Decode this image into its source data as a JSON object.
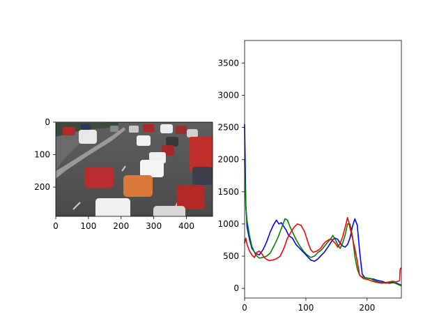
{
  "figure": {
    "image_panel": {
      "description": "photo of highway traffic with many cars",
      "xticks": [
        "0",
        "100",
        "200",
        "300",
        "400"
      ],
      "yticks": [
        "0",
        "100",
        "200"
      ]
    }
  },
  "chart_data": [
    {
      "type": "image",
      "xlim": [
        0,
        480
      ],
      "ylim": [
        290,
        0
      ],
      "xticks": [
        0,
        100,
        200,
        300,
        400
      ],
      "yticks": [
        0,
        100,
        200
      ]
    },
    {
      "type": "line",
      "title": "",
      "xlabel": "",
      "ylabel": "",
      "xlim": [
        0,
        256
      ],
      "ylim": [
        -150,
        3850
      ],
      "xticks": [
        0,
        100,
        200
      ],
      "yticks": [
        0,
        500,
        1000,
        1500,
        2000,
        2500,
        3000,
        3500
      ],
      "grid": false,
      "series": [
        {
          "color": "#0000ff",
          "points": [
            [
              0,
              2550
            ],
            [
              2,
              1300
            ],
            [
              4,
              950
            ],
            [
              8,
              760
            ],
            [
              12,
              620
            ],
            [
              18,
              540
            ],
            [
              24,
              520
            ],
            [
              30,
              600
            ],
            [
              36,
              720
            ],
            [
              42,
              880
            ],
            [
              48,
              1000
            ],
            [
              52,
              1060
            ],
            [
              56,
              1000
            ],
            [
              60,
              1020
            ],
            [
              64,
              960
            ],
            [
              68,
              900
            ],
            [
              72,
              820
            ],
            [
              78,
              780
            ],
            [
              84,
              680
            ],
            [
              90,
              620
            ],
            [
              96,
              560
            ],
            [
              102,
              500
            ],
            [
              108,
              440
            ],
            [
              114,
              420
            ],
            [
              120,
              460
            ],
            [
              126,
              520
            ],
            [
              130,
              560
            ],
            [
              136,
              640
            ],
            [
              140,
              700
            ],
            [
              144,
              760
            ],
            [
              148,
              780
            ],
            [
              152,
              760
            ],
            [
              156,
              700
            ],
            [
              160,
              660
            ],
            [
              164,
              640
            ],
            [
              168,
              680
            ],
            [
              172,
              780
            ],
            [
              176,
              960
            ],
            [
              180,
              1080
            ],
            [
              184,
              980
            ],
            [
              188,
              560
            ],
            [
              192,
              220
            ],
            [
              196,
              170
            ],
            [
              200,
              160
            ],
            [
              206,
              150
            ],
            [
              212,
              140
            ],
            [
              218,
              120
            ],
            [
              224,
              110
            ],
            [
              230,
              90
            ],
            [
              236,
              80
            ],
            [
              242,
              90
            ],
            [
              248,
              80
            ],
            [
              253,
              60
            ],
            [
              256,
              50
            ]
          ]
        },
        {
          "color": "#008000",
          "points": [
            [
              0,
              2000
            ],
            [
              2,
              1250
            ],
            [
              4,
              1050
            ],
            [
              8,
              820
            ],
            [
              12,
              650
            ],
            [
              18,
              520
            ],
            [
              24,
              470
            ],
            [
              30,
              480
            ],
            [
              36,
              500
            ],
            [
              42,
              550
            ],
            [
              48,
              660
            ],
            [
              54,
              780
            ],
            [
              58,
              880
            ],
            [
              62,
              980
            ],
            [
              66,
              1080
            ],
            [
              70,
              1060
            ],
            [
              74,
              960
            ],
            [
              78,
              880
            ],
            [
              84,
              760
            ],
            [
              90,
              660
            ],
            [
              96,
              580
            ],
            [
              102,
              520
            ],
            [
              108,
              480
            ],
            [
              114,
              500
            ],
            [
              120,
              560
            ],
            [
              126,
              600
            ],
            [
              130,
              650
            ],
            [
              136,
              720
            ],
            [
              140,
              760
            ],
            [
              144,
              820
            ],
            [
              148,
              760
            ],
            [
              152,
              680
            ],
            [
              156,
              620
            ],
            [
              160,
              700
            ],
            [
              164,
              820
            ],
            [
              168,
              1000
            ],
            [
              172,
              1000
            ],
            [
              176,
              820
            ],
            [
              180,
              500
            ],
            [
              184,
              300
            ],
            [
              188,
              200
            ],
            [
              194,
              170
            ],
            [
              200,
              160
            ],
            [
              206,
              150
            ],
            [
              212,
              120
            ],
            [
              218,
              100
            ],
            [
              224,
              90
            ],
            [
              230,
              80
            ],
            [
              236,
              90
            ],
            [
              242,
              100
            ],
            [
              248,
              70
            ],
            [
              253,
              50
            ],
            [
              256,
              40
            ]
          ]
        },
        {
          "color": "#ff0000",
          "points": [
            [
              0,
              700
            ],
            [
              2,
              780
            ],
            [
              4,
              680
            ],
            [
              8,
              580
            ],
            [
              12,
              520
            ],
            [
              16,
              480
            ],
            [
              20,
              560
            ],
            [
              24,
              580
            ],
            [
              28,
              540
            ],
            [
              32,
              480
            ],
            [
              36,
              450
            ],
            [
              40,
              430
            ],
            [
              46,
              440
            ],
            [
              52,
              460
            ],
            [
              58,
              500
            ],
            [
              64,
              620
            ],
            [
              70,
              780
            ],
            [
              76,
              880
            ],
            [
              80,
              940
            ],
            [
              86,
              1000
            ],
            [
              92,
              980
            ],
            [
              98,
              880
            ],
            [
              104,
              700
            ],
            [
              108,
              600
            ],
            [
              112,
              560
            ],
            [
              118,
              580
            ],
            [
              124,
              620
            ],
            [
              128,
              680
            ],
            [
              132,
              720
            ],
            [
              138,
              760
            ],
            [
              142,
              760
            ],
            [
              148,
              700
            ],
            [
              152,
              640
            ],
            [
              156,
              700
            ],
            [
              160,
              800
            ],
            [
              164,
              940
            ],
            [
              168,
              1100
            ],
            [
              172,
              940
            ],
            [
              176,
              780
            ],
            [
              180,
              620
            ],
            [
              184,
              420
            ],
            [
              188,
              200
            ],
            [
              194,
              150
            ],
            [
              200,
              140
            ],
            [
              206,
              120
            ],
            [
              212,
              100
            ],
            [
              218,
              90
            ],
            [
              224,
              80
            ],
            [
              230,
              90
            ],
            [
              236,
              100
            ],
            [
              242,
              110
            ],
            [
              248,
              100
            ],
            [
              253,
              120
            ],
            [
              254,
              300
            ],
            [
              256,
              320
            ]
          ]
        }
      ]
    }
  ]
}
